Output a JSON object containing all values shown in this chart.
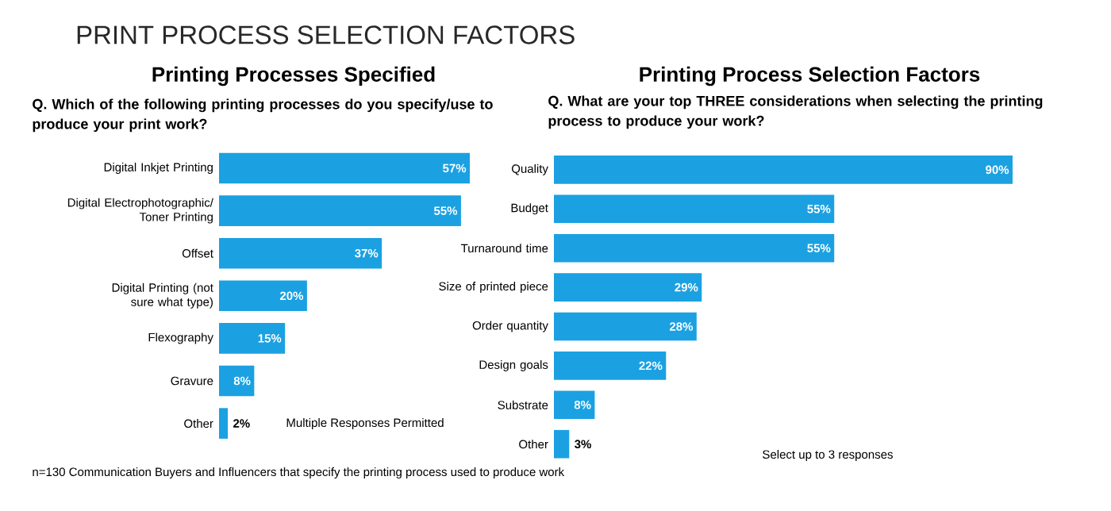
{
  "chart_data": [
    {
      "type": "bar",
      "orientation": "horizontal",
      "title": "Printing Processes Specified",
      "subtitle": "Q. Which of the following printing processes do you specify/use to produce your print work?",
      "categories": [
        "Digital Inkjet Printing",
        "Digital Electrophotographic/ Toner Printing",
        "Offset",
        "Digital Printing (not sure what type)",
        "Flexography",
        "Gravure",
        "Other"
      ],
      "values": [
        57,
        55,
        37,
        20,
        15,
        8,
        2
      ],
      "value_labels": [
        "57%",
        "55%",
        "37%",
        "20%",
        "15%",
        "8%",
        "2%"
      ],
      "color": "#1ba1e2",
      "annotations": [
        "PRINT PROCESS SELECTION FACTORS",
        "Multiple Responses Permitted",
        "n=130 Communication Buyers and Influencers that specify the printing process used to produce work"
      ]
    },
    {
      "type": "bar",
      "orientation": "horizontal",
      "title": "Printing Process Selection Factors",
      "subtitle": "Q. What are your top THREE considerations when selecting the printing process to produce your work?",
      "categories": [
        "Quality",
        "Budget",
        "Turnaround time",
        "Size of printed piece",
        "Order quantity",
        "Design goals",
        "Substrate",
        "Other"
      ],
      "values": [
        90,
        55,
        55,
        29,
        28,
        22,
        8,
        3
      ],
      "value_labels": [
        "90%",
        "55%",
        "55%",
        "29%",
        "28%",
        "22%",
        "8%",
        "3%"
      ],
      "color": "#1ba1e2",
      "annotations": [
        "Select up to 3 responses"
      ]
    }
  ]
}
